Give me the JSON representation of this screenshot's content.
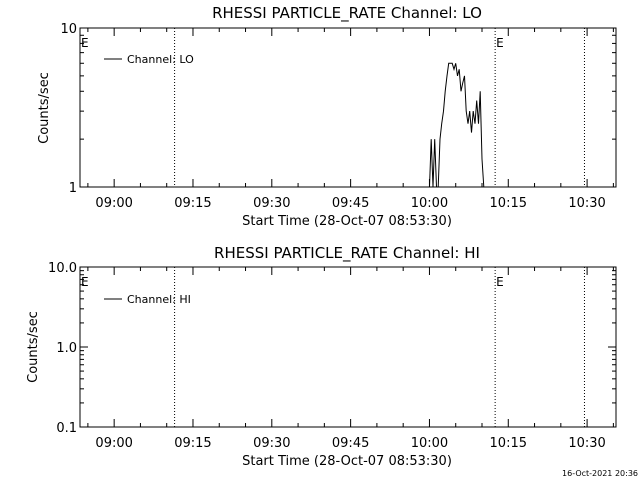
{
  "footer": {
    "timestamp": "16-Oct-2021 20:36"
  },
  "chart_data": [
    {
      "type": "line",
      "title": "RHESSI PARTICLE_RATE Channel: LO",
      "xlabel": "Start Time (28-Oct-07 08:53:30)",
      "ylabel": "Counts/sec",
      "yscale": "log",
      "ylim": [
        1,
        10
      ],
      "xlim": [
        "08:53:30",
        "10:35:30"
      ],
      "x_ticks": [
        "09:00",
        "09:15",
        "09:30",
        "09:45",
        "10:00",
        "10:15",
        "10:30"
      ],
      "y_ticks": [
        "1",
        "10"
      ],
      "legend": {
        "entries": [
          "Channel: LO"
        ],
        "position": "top-left"
      },
      "markers": [
        {
          "label": "E",
          "time": "08:53:30"
        },
        {
          "label": "",
          "time": "09:11:30"
        },
        {
          "label": "E",
          "time": "10:12:30"
        },
        {
          "label": "",
          "time": "10:29:30"
        }
      ],
      "series": [
        {
          "name": "Channel: LO",
          "x": [
            "10:00:00",
            "10:00:20",
            "10:00:40",
            "10:01:00",
            "10:01:20",
            "10:01:40",
            "10:02:00",
            "10:02:20",
            "10:02:40",
            "10:03:00",
            "10:03:20",
            "10:03:40",
            "10:04:00",
            "10:04:20",
            "10:04:40",
            "10:05:00",
            "10:05:20",
            "10:05:40",
            "10:06:00",
            "10:06:20",
            "10:06:40",
            "10:07:00",
            "10:07:20",
            "10:07:40",
            "10:08:00",
            "10:08:20",
            "10:08:40",
            "10:09:00",
            "10:09:20",
            "10:09:40",
            "10:10:00",
            "10:10:20"
          ],
          "values": [
            1,
            2,
            1,
            2,
            1,
            1,
            2,
            2.5,
            3,
            4,
            5,
            6,
            6,
            6,
            5.5,
            6,
            5,
            5.5,
            4,
            4.5,
            5,
            3,
            2.5,
            3,
            2.2,
            3,
            2.5,
            3.5,
            2.5,
            4,
            1.5,
            1
          ]
        }
      ]
    },
    {
      "type": "line",
      "title": "RHESSI PARTICLE_RATE Channel: HI",
      "xlabel": "Start Time (28-Oct-07 08:53:30)",
      "ylabel": "Counts/sec",
      "yscale": "log",
      "ylim": [
        0.1,
        10
      ],
      "xlim": [
        "08:53:30",
        "10:35:30"
      ],
      "x_ticks": [
        "09:00",
        "09:15",
        "09:30",
        "09:45",
        "10:00",
        "10:15",
        "10:30"
      ],
      "y_ticks": [
        "0.1",
        "1.0",
        "10.0"
      ],
      "legend": {
        "entries": [
          "Channel: HI"
        ],
        "position": "top-left"
      },
      "markers": [
        {
          "label": "E",
          "time": "08:53:30"
        },
        {
          "label": "",
          "time": "09:11:30"
        },
        {
          "label": "E",
          "time": "10:12:30"
        },
        {
          "label": "",
          "time": "10:29:30"
        }
      ],
      "series": [
        {
          "name": "Channel: HI",
          "x": [],
          "values": []
        }
      ]
    }
  ]
}
